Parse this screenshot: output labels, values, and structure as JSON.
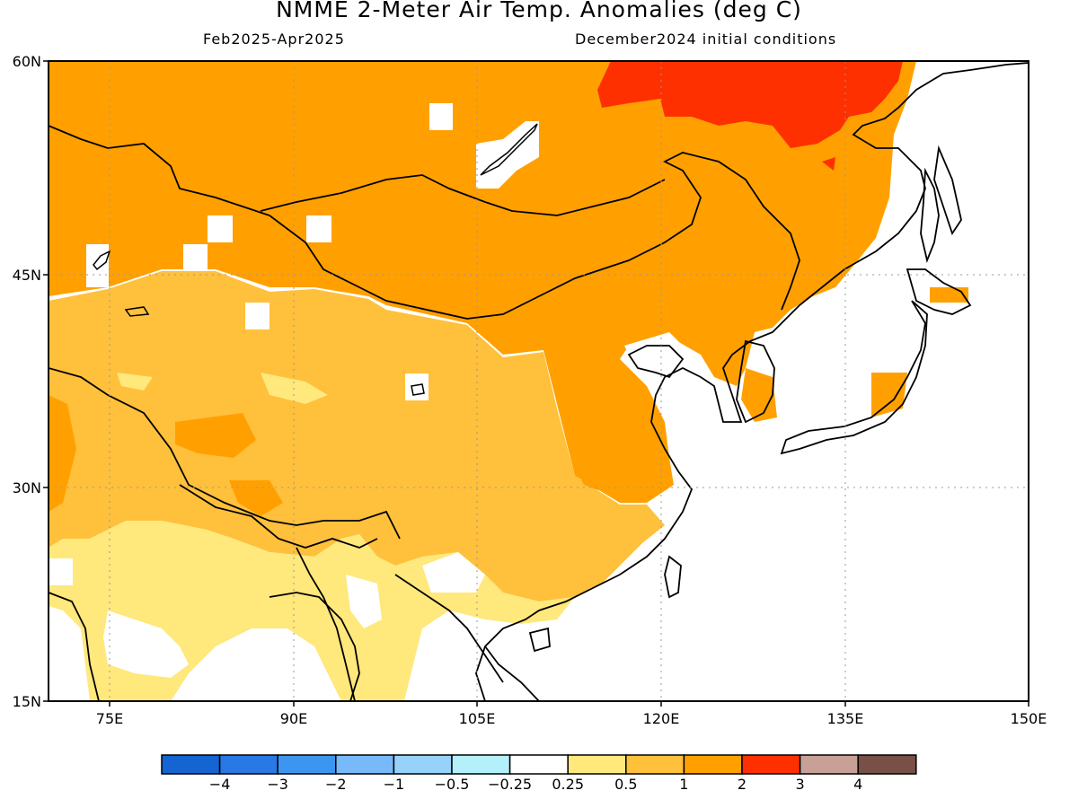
{
  "header": {
    "title": "NMME 2-Meter Air Temp. Anomalies (deg C)",
    "period": "Feb2025-Apr2025",
    "init": "December2024 initial conditions"
  },
  "map": {
    "lon_range": [
      70,
      150
    ],
    "lat_range": [
      15,
      60
    ],
    "lat_ticks": [
      {
        "value": 60,
        "label": "60N"
      },
      {
        "value": 45,
        "label": "45N"
      },
      {
        "value": 30,
        "label": "30N"
      },
      {
        "value": 15,
        "label": "15N"
      }
    ],
    "lon_ticks": [
      {
        "value": 75,
        "label": "75E"
      },
      {
        "value": 90,
        "label": "90E"
      },
      {
        "value": 105,
        "label": "105E"
      },
      {
        "value": 120,
        "label": "120E"
      },
      {
        "value": 135,
        "label": "135E"
      },
      {
        "value": 150,
        "label": "150E"
      }
    ],
    "grid": true,
    "colors": {
      "anom_0p25_0p5": "#ffe87c",
      "anom_0p5_1": "#ffc03c",
      "anom_1_2": "#ffa000",
      "anom_2_3": "#ff3000",
      "land_outline": "#000000"
    }
  },
  "colorbar": {
    "colors": [
      "#1464d2",
      "#2878e6",
      "#3c96f0",
      "#78b9fa",
      "#96d2fa",
      "#b4f0fa",
      "#ffffff",
      "#ffe87c",
      "#ffc03c",
      "#ffa000",
      "#ff3000",
      "#c8a096",
      "#785046"
    ],
    "labels": [
      "−4",
      "−3",
      "−2",
      "−1",
      "−0.5",
      "−0.25",
      "0.25",
      "0.5",
      "1",
      "2",
      "3",
      "4"
    ]
  }
}
